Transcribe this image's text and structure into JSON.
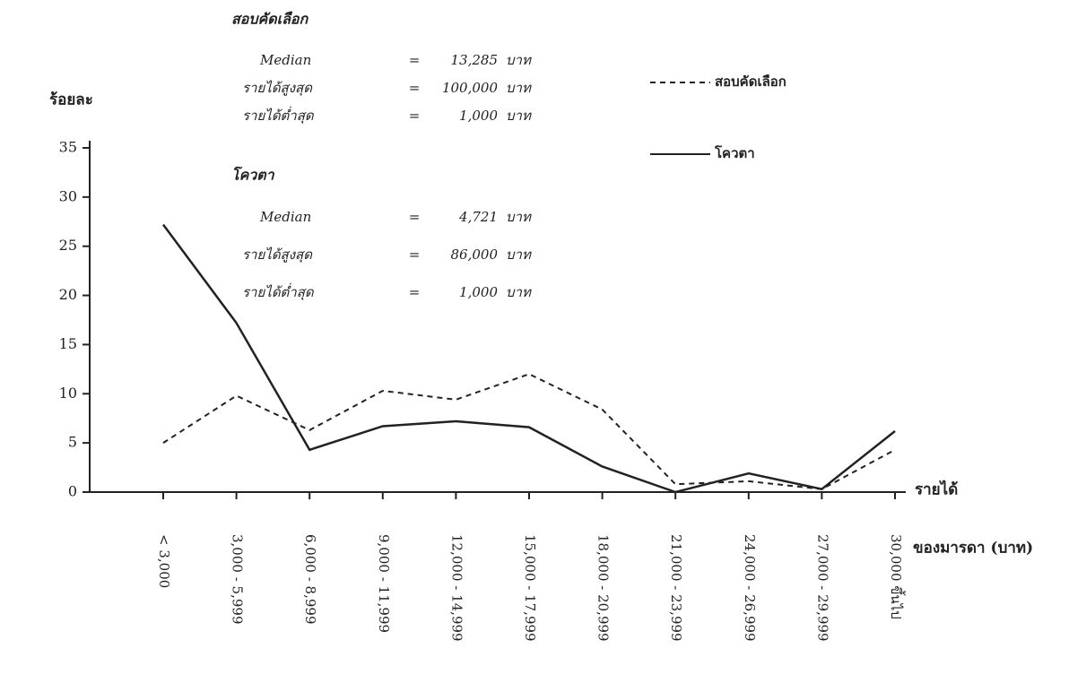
{
  "chart_data": {
    "type": "line",
    "y_label": "ร้อยละ",
    "x_label": [
      "รายได้",
      "ของมารดา (บาท)"
    ],
    "categories": [
      "< 3,000",
      "3,000 - 5,999",
      "6,000 - 8,999",
      "9,000 - 11,999",
      "12,000 - 14,999",
      "15,000 - 17,999",
      "18,000 - 20,999",
      "21,000 - 23,999",
      "24,000 - 26,999",
      "27,000 - 29,999",
      "30,000 ขึ้นไป"
    ],
    "series": [
      {
        "name": "สอบคัดเลือก",
        "color": "#222222",
        "dash": true,
        "values": [
          5.0,
          9.8,
          6.3,
          10.3,
          9.4,
          12.0,
          8.4,
          0.8,
          1.1,
          0.3,
          4.3
        ]
      },
      {
        "name": "โควตา",
        "color": "#222222",
        "dash": false,
        "values": [
          27.2,
          17.2,
          4.3,
          6.7,
          7.2,
          6.6,
          2.6,
          0.0,
          1.9,
          0.3,
          6.2
        ]
      }
    ],
    "ylim": [
      0,
      35
    ],
    "yticks": [
      0,
      5,
      10,
      15,
      20,
      25,
      30,
      35
    ],
    "grid": false,
    "legend": "top-right",
    "annotations": [
      {
        "title": "สอบคัดเลือก",
        "rows": [
          [
            "Median",
            "=",
            "13,285",
            "บาท"
          ],
          [
            "รายได้สูงสุด",
            "=",
            "100,000",
            "บาท"
          ],
          [
            "รายได้ต่ำสุด",
            "=",
            "1,000",
            "บาท"
          ]
        ]
      },
      {
        "title": "โควตา",
        "rows": [
          [
            "Median",
            "=",
            "4,721",
            "บาท"
          ],
          [
            "รายได้สูงสุด",
            "=",
            "86,000",
            "บาท"
          ],
          [
            "รายได้ต่ำสุด",
            "=",
            "1,000",
            "บาท"
          ]
        ]
      }
    ]
  }
}
